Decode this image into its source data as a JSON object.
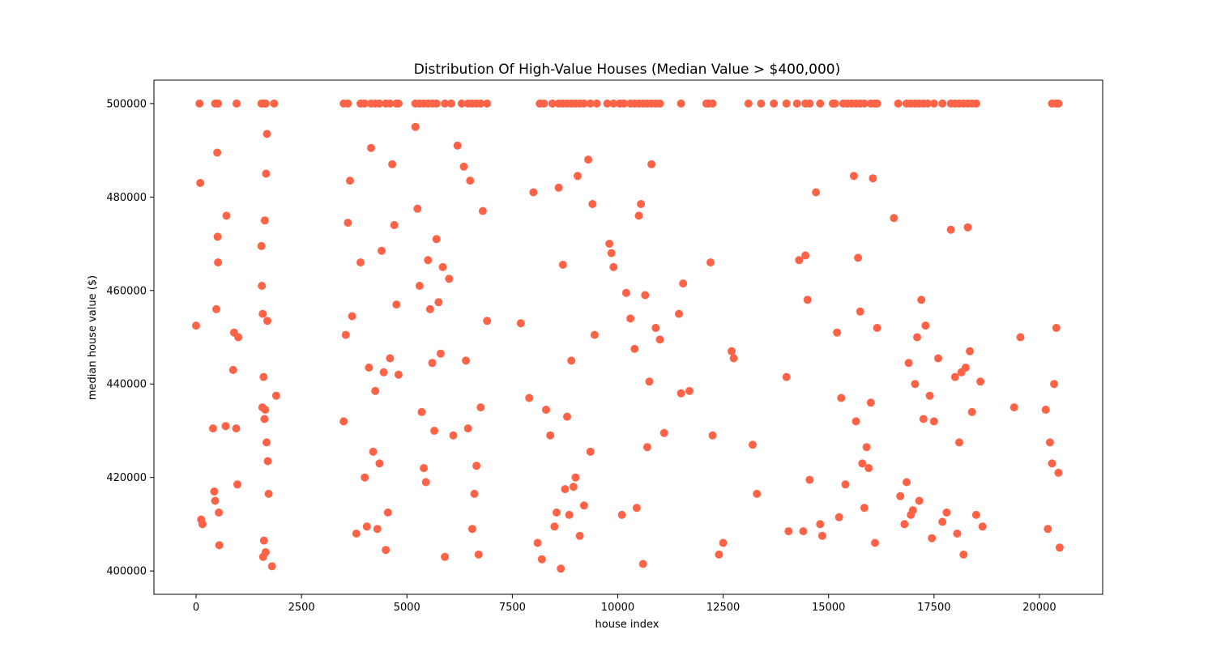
{
  "chart_data": {
    "type": "scatter",
    "title": "Distribution Of High-Value Houses (Median Value > $400,000)",
    "xlabel": "house index",
    "ylabel": "median house value ($)",
    "xlim": [
      -1000,
      21500
    ],
    "ylim": [
      395000,
      505000
    ],
    "x_ticks": [
      0,
      2500,
      5000,
      7500,
      10000,
      12500,
      15000,
      17500,
      20000
    ],
    "y_ticks": [
      400000,
      420000,
      440000,
      460000,
      480000,
      500000
    ],
    "grid": false,
    "legend": "none",
    "marker_color": "#ff6347",
    "series": [
      {
        "x": [
          0,
          100,
          120,
          150,
          400,
          430,
          450,
          480,
          500,
          510,
          520,
          540,
          550,
          700,
          720,
          880,
          900,
          950,
          980,
          1000,
          1550,
          1560,
          1570,
          1580,
          1590,
          1600,
          1610,
          1620,
          1630,
          1640,
          1650,
          1660,
          1670,
          1680,
          1690,
          1700,
          1720,
          1800,
          1900,
          3500,
          3550,
          3600,
          3650,
          3700,
          3800,
          3900,
          4000,
          4050,
          4100,
          4150,
          4200,
          4250,
          4300,
          4350,
          4400,
          4450,
          4500,
          4550,
          4600,
          4650,
          4700,
          4750,
          4800,
          5200,
          5250,
          5300,
          5350,
          5400,
          5450,
          5500,
          5550,
          5600,
          5650,
          5700,
          5750,
          5800,
          5850,
          5900,
          6000,
          6100,
          6200,
          6350,
          6400,
          6450,
          6500,
          6550,
          6600,
          6650,
          6700,
          6750,
          6800,
          6900,
          7700,
          7900,
          8000,
          8100,
          8200,
          8300,
          8400,
          8500,
          8550,
          8600,
          8650,
          8700,
          8750,
          8800,
          8850,
          8900,
          8950,
          9000,
          9050,
          9100,
          9200,
          9300,
          9350,
          9400,
          9450,
          9800,
          9850,
          9900,
          10100,
          10200,
          10300,
          10400,
          10450,
          10500,
          10550,
          10600,
          10650,
          10700,
          10750,
          10800,
          10900,
          11000,
          11100,
          11450,
          11500,
          11550,
          11700,
          12200,
          12250,
          12400,
          12500,
          12700,
          12750,
          13200,
          13300,
          14000,
          14050,
          14300,
          14400,
          14450,
          14500,
          14550,
          14700,
          14800,
          14850,
          15200,
          15250,
          15300,
          15400,
          15600,
          15650,
          15700,
          15750,
          15800,
          15850,
          15900,
          15950,
          16000,
          16050,
          16100,
          16150,
          16550,
          16700,
          16800,
          16850,
          16900,
          16950,
          17000,
          17050,
          17100,
          17150,
          17200,
          17250,
          17300,
          17400,
          17450,
          17500,
          17600,
          17700,
          17800,
          17900,
          18000,
          18050,
          18100,
          18150,
          18200,
          18250,
          18300,
          18350,
          18400,
          18500,
          18600,
          18650,
          19400,
          19550,
          20150,
          20200,
          20250,
          20300,
          20350,
          20400,
          20450,
          20480,
          80,
          450,
          520,
          960,
          1550,
          1620,
          1650,
          1850,
          3500,
          3600,
          3900,
          4000,
          4150,
          4250,
          4350,
          4500,
          4600,
          4750,
          4800,
          5200,
          5300,
          5400,
          5500,
          5600,
          5700,
          5900,
          6050,
          6300,
          6450,
          6550,
          6650,
          6750,
          6900,
          8150,
          8250,
          8450,
          8600,
          8700,
          8800,
          8900,
          9000,
          9100,
          9200,
          9350,
          9500,
          9750,
          9900,
          10050,
          10150,
          10300,
          10400,
          10500,
          10600,
          10700,
          10800,
          10900,
          11000,
          11500,
          12100,
          12150,
          12250,
          13100,
          13400,
          13700,
          14000,
          14250,
          14450,
          14550,
          14800,
          15100,
          15150,
          15350,
          15450,
          15550,
          15650,
          15750,
          15850,
          16000,
          16100,
          16150,
          16650,
          16850,
          16950,
          17050,
          17150,
          17250,
          17350,
          17500,
          17700,
          17900,
          18000,
          18100,
          18200,
          18300,
          18400,
          18500,
          20300,
          20400,
          20450
        ],
        "y": [
          452500,
          483000,
          411000,
          410000,
          430500,
          417000,
          415000,
          456000,
          489500,
          471500,
          466000,
          412500,
          405500,
          431000,
          476000,
          443000,
          451000,
          430500,
          418500,
          450000,
          469500,
          461000,
          435000,
          455000,
          403000,
          441500,
          406500,
          432500,
          475000,
          434500,
          404000,
          485000,
          427500,
          493500,
          453500,
          423500,
          416500,
          401000,
          437500,
          432000,
          450500,
          474500,
          483500,
          454500,
          408000,
          466000,
          420000,
          409500,
          443500,
          490500,
          425500,
          438500,
          409000,
          423000,
          468500,
          442500,
          404500,
          412500,
          445500,
          487000,
          474000,
          457000,
          442000,
          495000,
          477500,
          461000,
          434000,
          422000,
          419000,
          466500,
          456000,
          444500,
          430000,
          471000,
          457500,
          446500,
          465000,
          403000,
          462500,
          429000,
          491000,
          486500,
          445000,
          430500,
          483500,
          409000,
          416500,
          422500,
          403500,
          435000,
          477000,
          453500,
          453000,
          437000,
          481000,
          406000,
          402500,
          434500,
          429000,
          409500,
          412500,
          482000,
          400500,
          465500,
          417500,
          433000,
          412000,
          445000,
          418000,
          420000,
          484500,
          407500,
          414000,
          488000,
          425500,
          478500,
          450500,
          470000,
          468000,
          465000,
          412000,
          459500,
          454000,
          447500,
          413500,
          476000,
          478500,
          401500,
          459000,
          426500,
          440500,
          487000,
          452000,
          449500,
          429500,
          455000,
          438000,
          461500,
          438500,
          466000,
          429000,
          403500,
          406000,
          447000,
          445500,
          427000,
          416500,
          441500,
          408500,
          466500,
          408500,
          467500,
          458000,
          419500,
          481000,
          410000,
          407500,
          451000,
          411500,
          437000,
          418500,
          484500,
          432000,
          467000,
          455500,
          423000,
          413500,
          426500,
          422000,
          436000,
          484000,
          406000,
          452000,
          475500,
          416000,
          410000,
          419000,
          444500,
          412000,
          413000,
          440000,
          450000,
          415000,
          458000,
          432500,
          452500,
          437500,
          407000,
          432000,
          445500,
          410500,
          412500,
          473000,
          441500,
          408000,
          427500,
          442500,
          403500,
          443500,
          473500,
          447000,
          434000,
          412000,
          440500,
          409500,
          435000,
          450000,
          434500,
          409000,
          427500,
          423000,
          440000,
          452000,
          421000,
          405000,
          500000,
          500000,
          500000,
          500000,
          500000,
          500000,
          500000,
          500000,
          500000,
          500000,
          500000,
          500000,
          500000,
          500000,
          500000,
          500000,
          500000,
          500000,
          500000,
          500000,
          500000,
          500000,
          500000,
          500000,
          500000,
          500000,
          500000,
          500000,
          500000,
          500000,
          500000,
          500000,
          500000,
          500000,
          500000,
          500000,
          500000,
          500000,
          500000,
          500000,
          500000,
          500000,
          500000,
          500000,
          500000,
          500000,
          500000,
          500000,
          500000,
          500000,
          500000,
          500000,
          500000,
          500000,
          500000,
          500000,
          500000,
          500000,
          500000,
          500000,
          500000,
          500000,
          500000,
          500000,
          500000,
          500000,
          500000,
          500000,
          500000,
          500000,
          500000,
          500000,
          500000,
          500000,
          500000,
          500000,
          500000,
          500000,
          500000,
          500000,
          500000,
          500000,
          500000,
          500000,
          500000,
          500000,
          500000,
          500000,
          500000,
          500000,
          500000,
          500000,
          500000,
          500000,
          500000,
          500000,
          500000,
          500000,
          500000
        ]
      }
    ]
  }
}
